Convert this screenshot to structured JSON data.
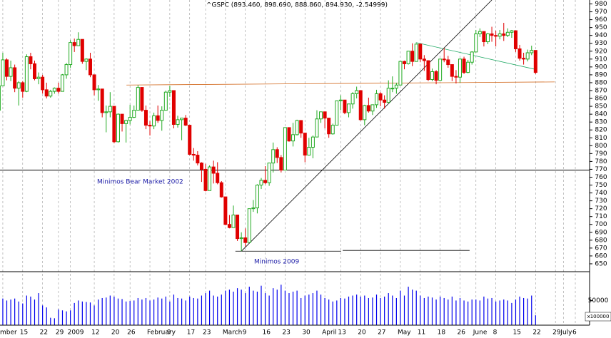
{
  "chart_data": {
    "type": "candlestick",
    "title": "^GSPC (893.460, 898.690, 888.860, 894.930, -2.54999)",
    "open": [
      870,
      845,
      876,
      909,
      888,
      899,
      873,
      880,
      869,
      913,
      904,
      885,
      887,
      871,
      863,
      869,
      873,
      869,
      890,
      903,
      931,
      927,
      935,
      907,
      910,
      890,
      871,
      872,
      842,
      843,
      850,
      805,
      840,
      828,
      832,
      836,
      845,
      874,
      845,
      826,
      825,
      838,
      832,
      845,
      868,
      870,
      827,
      833,
      835,
      826,
      789,
      788,
      778,
      770,
      743,
      773,
      765,
      753,
      735,
      700,
      696,
      712,
      682,
      683,
      677,
      720,
      721,
      750,
      756,
      753,
      778,
      795,
      785,
      769,
      823,
      806,
      814,
      832,
      816,
      788,
      798,
      811,
      834,
      843,
      835,
      815,
      826,
      857,
      858,
      842,
      853,
      866,
      870,
      833,
      851,
      844,
      852,
      866,
      858,
      855,
      873,
      873,
      877,
      907,
      904,
      920,
      907,
      929,
      910,
      908,
      884,
      894,
      883,
      910,
      909,
      903,
      888,
      887,
      910,
      893,
      906,
      919,
      942,
      945,
      932,
      942,
      940,
      939,
      942,
      940,
      944,
      946,
      923,
      911,
      910,
      918,
      921
    ],
    "high": [
      875,
      879,
      918,
      911,
      908,
      903,
      882,
      882,
      916,
      918,
      908,
      893,
      890,
      880,
      871,
      874,
      880,
      891,
      905,
      934,
      936,
      944,
      935,
      911,
      918,
      890,
      877,
      872,
      851,
      868,
      850,
      841,
      840,
      833,
      852,
      851,
      877,
      874,
      851,
      831,
      842,
      851,
      850,
      870,
      876,
      870,
      838,
      835,
      839,
      826,
      797,
      793,
      779,
      777,
      775,
      781,
      779,
      755,
      735,
      712,
      724,
      712,
      690,
      695,
      720,
      731,
      751,
      759,
      774,
      778,
      804,
      798,
      788,
      823,
      823,
      829,
      833,
      832,
      816,
      810,
      813,
      845,
      843,
      843,
      835,
      828,
      857,
      864,
      856,
      853,
      868,
      875,
      868,
      852,
      861,
      852,
      871,
      868,
      864,
      883,
      888,
      880,
      907,
      908,
      920,
      930,
      930,
      929,
      915,
      908,
      898,
      896,
      910,
      924,
      914,
      903,
      896,
      911,
      913,
      909,
      920,
      947,
      949,
      945,
      943,
      951,
      946,
      947,
      956,
      949,
      947,
      946,
      928,
      918,
      922,
      927,
      921
    ],
    "low": [
      838,
      840,
      876,
      883,
      882,
      868,
      851,
      861,
      868,
      897,
      883,
      878,
      866,
      860,
      861,
      866,
      866,
      869,
      885,
      899,
      919,
      927,
      904,
      896,
      887,
      864,
      857,
      836,
      817,
      836,
      803,
      804,
      818,
      804,
      827,
      835,
      845,
      843,
      821,
      813,
      821,
      829,
      819,
      845,
      862,
      822,
      823,
      807,
      825,
      788,
      781,
      775,
      754,
      742,
      744,
      752,
      751,
      734,
      699,
      695,
      698,
      679,
      666,
      672,
      677,
      716,
      714,
      745,
      751,
      749,
      766,
      778,
      766,
      769,
      805,
      799,
      813,
      810,
      779,
      789,
      784,
      811,
      829,
      822,
      810,
      814,
      826,
      845,
      840,
      836,
      847,
      860,
      832,
      826,
      842,
      839,
      848,
      850,
      847,
      855,
      868,
      866,
      879,
      897,
      903,
      901,
      909,
      906,
      895,
      882,
      882,
      878,
      883,
      906,
      899,
      882,
      879,
      880,
      891,
      892,
      903,
      919,
      938,
      926,
      929,
      932,
      926,
      935,
      933,
      938,
      937,
      919,
      908,
      903,
      907,
      915,
      891
    ],
    "close": [
      845,
      876,
      909,
      888,
      899,
      873,
      880,
      869,
      913,
      904,
      885,
      887,
      871,
      863,
      869,
      873,
      869,
      890,
      903,
      931,
      927,
      935,
      907,
      910,
      890,
      871,
      872,
      842,
      843,
      850,
      805,
      840,
      828,
      832,
      836,
      845,
      874,
      845,
      826,
      825,
      838,
      832,
      845,
      868,
      870,
      827,
      833,
      835,
      826,
      789,
      788,
      778,
      770,
      743,
      773,
      765,
      753,
      735,
      700,
      696,
      712,
      682,
      683,
      677,
      720,
      721,
      750,
      756,
      753,
      778,
      795,
      785,
      769,
      823,
      806,
      814,
      832,
      816,
      788,
      798,
      811,
      834,
      843,
      835,
      815,
      826,
      857,
      858,
      842,
      853,
      866,
      870,
      833,
      851,
      844,
      852,
      866,
      858,
      855,
      873,
      873,
      877,
      907,
      904,
      920,
      907,
      929,
      910,
      908,
      884,
      894,
      883,
      910,
      909,
      903,
      888,
      887,
      910,
      893,
      906,
      919,
      942,
      945,
      932,
      942,
      940,
      939,
      942,
      940,
      944,
      946,
      923,
      911,
      910,
      918,
      921,
      893
    ],
    "volume": [
      52000,
      50000,
      54000,
      50000,
      52000,
      54000,
      48000,
      44000,
      60000,
      58000,
      52000,
      65000,
      40000,
      36000,
      15000,
      14000,
      32000,
      30000,
      28000,
      30000,
      45000,
      50000,
      48000,
      47000,
      46000,
      40000,
      52000,
      55000,
      56000,
      60000,
      58000,
      54000,
      53000,
      48000,
      49000,
      50000,
      55000,
      52000,
      55000,
      50000,
      52000,
      56000,
      54000,
      58000,
      48000,
      62000,
      55000,
      54000,
      50000,
      58000,
      55000,
      54000,
      60000,
      65000,
      70000,
      60000,
      58000,
      62000,
      70000,
      72000,
      68000,
      75000,
      72000,
      65000,
      78000,
      70000,
      68000,
      80000,
      65000,
      60000,
      75000,
      72000,
      82000,
      70000,
      65000,
      68000,
      70000,
      55000,
      60000,
      62000,
      65000,
      70000,
      62000,
      55000,
      52000,
      48000,
      50000,
      55000,
      54000,
      58000,
      60000,
      62000,
      58000,
      60000,
      55000,
      56000,
      62000,
      55000,
      58000,
      65000,
      60000,
      55000,
      70000,
      60000,
      78000,
      72000,
      70000,
      60000,
      55000,
      58000,
      56000,
      52000,
      58000,
      55000,
      52000,
      58000,
      50000,
      55000,
      50000,
      48000,
      52000,
      52000,
      50000,
      58000,
      54000,
      55000,
      48000,
      50000,
      52000,
      50000,
      45000,
      52000,
      58000,
      55000,
      54000,
      60000,
      20000
    ],
    "up_color": "#22aa22",
    "down_color": "#e00000",
    "volume_color": "#0000ee",
    "ylim": [
      640,
      985
    ],
    "yticks": [
      650,
      660,
      670,
      680,
      690,
      700,
      710,
      720,
      730,
      740,
      750,
      760,
      770,
      780,
      790,
      800,
      810,
      820,
      830,
      840,
      850,
      860,
      870,
      880,
      890,
      900,
      910,
      920,
      930,
      940,
      950,
      960,
      970,
      980
    ],
    "volume_lim": [
      0,
      107000
    ],
    "volume_ticks": [
      50000
    ],
    "volume_unit": "x100000",
    "xticks": [
      {
        "value": 2,
        "label": "mber"
      },
      {
        "value": 7,
        "label": "15"
      },
      {
        "value": 12,
        "label": "22"
      },
      {
        "value": 16,
        "label": "29"
      },
      {
        "value": 19,
        "label": "2009"
      },
      {
        "value": 25,
        "label": "12"
      },
      {
        "value": 30,
        "label": "20"
      },
      {
        "value": 34,
        "label": "26"
      },
      {
        "value": 39,
        "label": "February"
      },
      {
        "value": 44,
        "label": "9"
      },
      {
        "value": 49,
        "label": "17"
      },
      {
        "value": 53,
        "label": "23"
      },
      {
        "value": 58,
        "label": "March"
      },
      {
        "value": 63,
        "label": "9"
      },
      {
        "value": 68,
        "label": "16"
      },
      {
        "value": 73,
        "label": "23"
      },
      {
        "value": 78,
        "label": "30"
      },
      {
        "value": 83,
        "label": "April"
      },
      {
        "value": 87,
        "label": "13"
      },
      {
        "value": 92,
        "label": "20"
      },
      {
        "value": 97,
        "label": "27"
      },
      {
        "value": 102,
        "label": "May"
      },
      {
        "value": 107,
        "label": "11"
      },
      {
        "value": 112,
        "label": "18"
      },
      {
        "value": 117,
        "label": "26"
      },
      {
        "value": 121,
        "label": "June"
      },
      {
        "value": 126,
        "label": "8"
      },
      {
        "value": 131,
        "label": "15"
      },
      {
        "value": 136,
        "label": "22"
      },
      {
        "value": 141,
        "label": "29"
      },
      {
        "value": 143,
        "label": "July"
      },
      {
        "value": 146,
        "label": "6"
      }
    ],
    "lines": [
      {
        "x": [
          62,
          125
        ],
        "y": [
          666,
          985
        ],
        "color": "#000000"
      },
      {
        "x": [
          33.1,
          140.8
        ],
        "y": [
          877,
          881
        ],
        "color": "#d2691e"
      },
      {
        "x": [
          105.9,
          135.9
        ],
        "y": [
          931,
          897
        ],
        "color": "#22aa66"
      },
      {
        "x": [
          60.5,
          87.1
        ],
        "y": [
          666,
          666
        ],
        "color": "#000000"
      },
      {
        "x": [
          87.5,
          119.4
        ],
        "y": [
          667,
          667
        ],
        "color": "#000000"
      }
    ],
    "hlines": [
      {
        "y": 769,
        "color": "#000000"
      }
    ],
    "annotations": [
      "Minimos Bear Market 2002",
      "Minimos 2009"
    ]
  }
}
